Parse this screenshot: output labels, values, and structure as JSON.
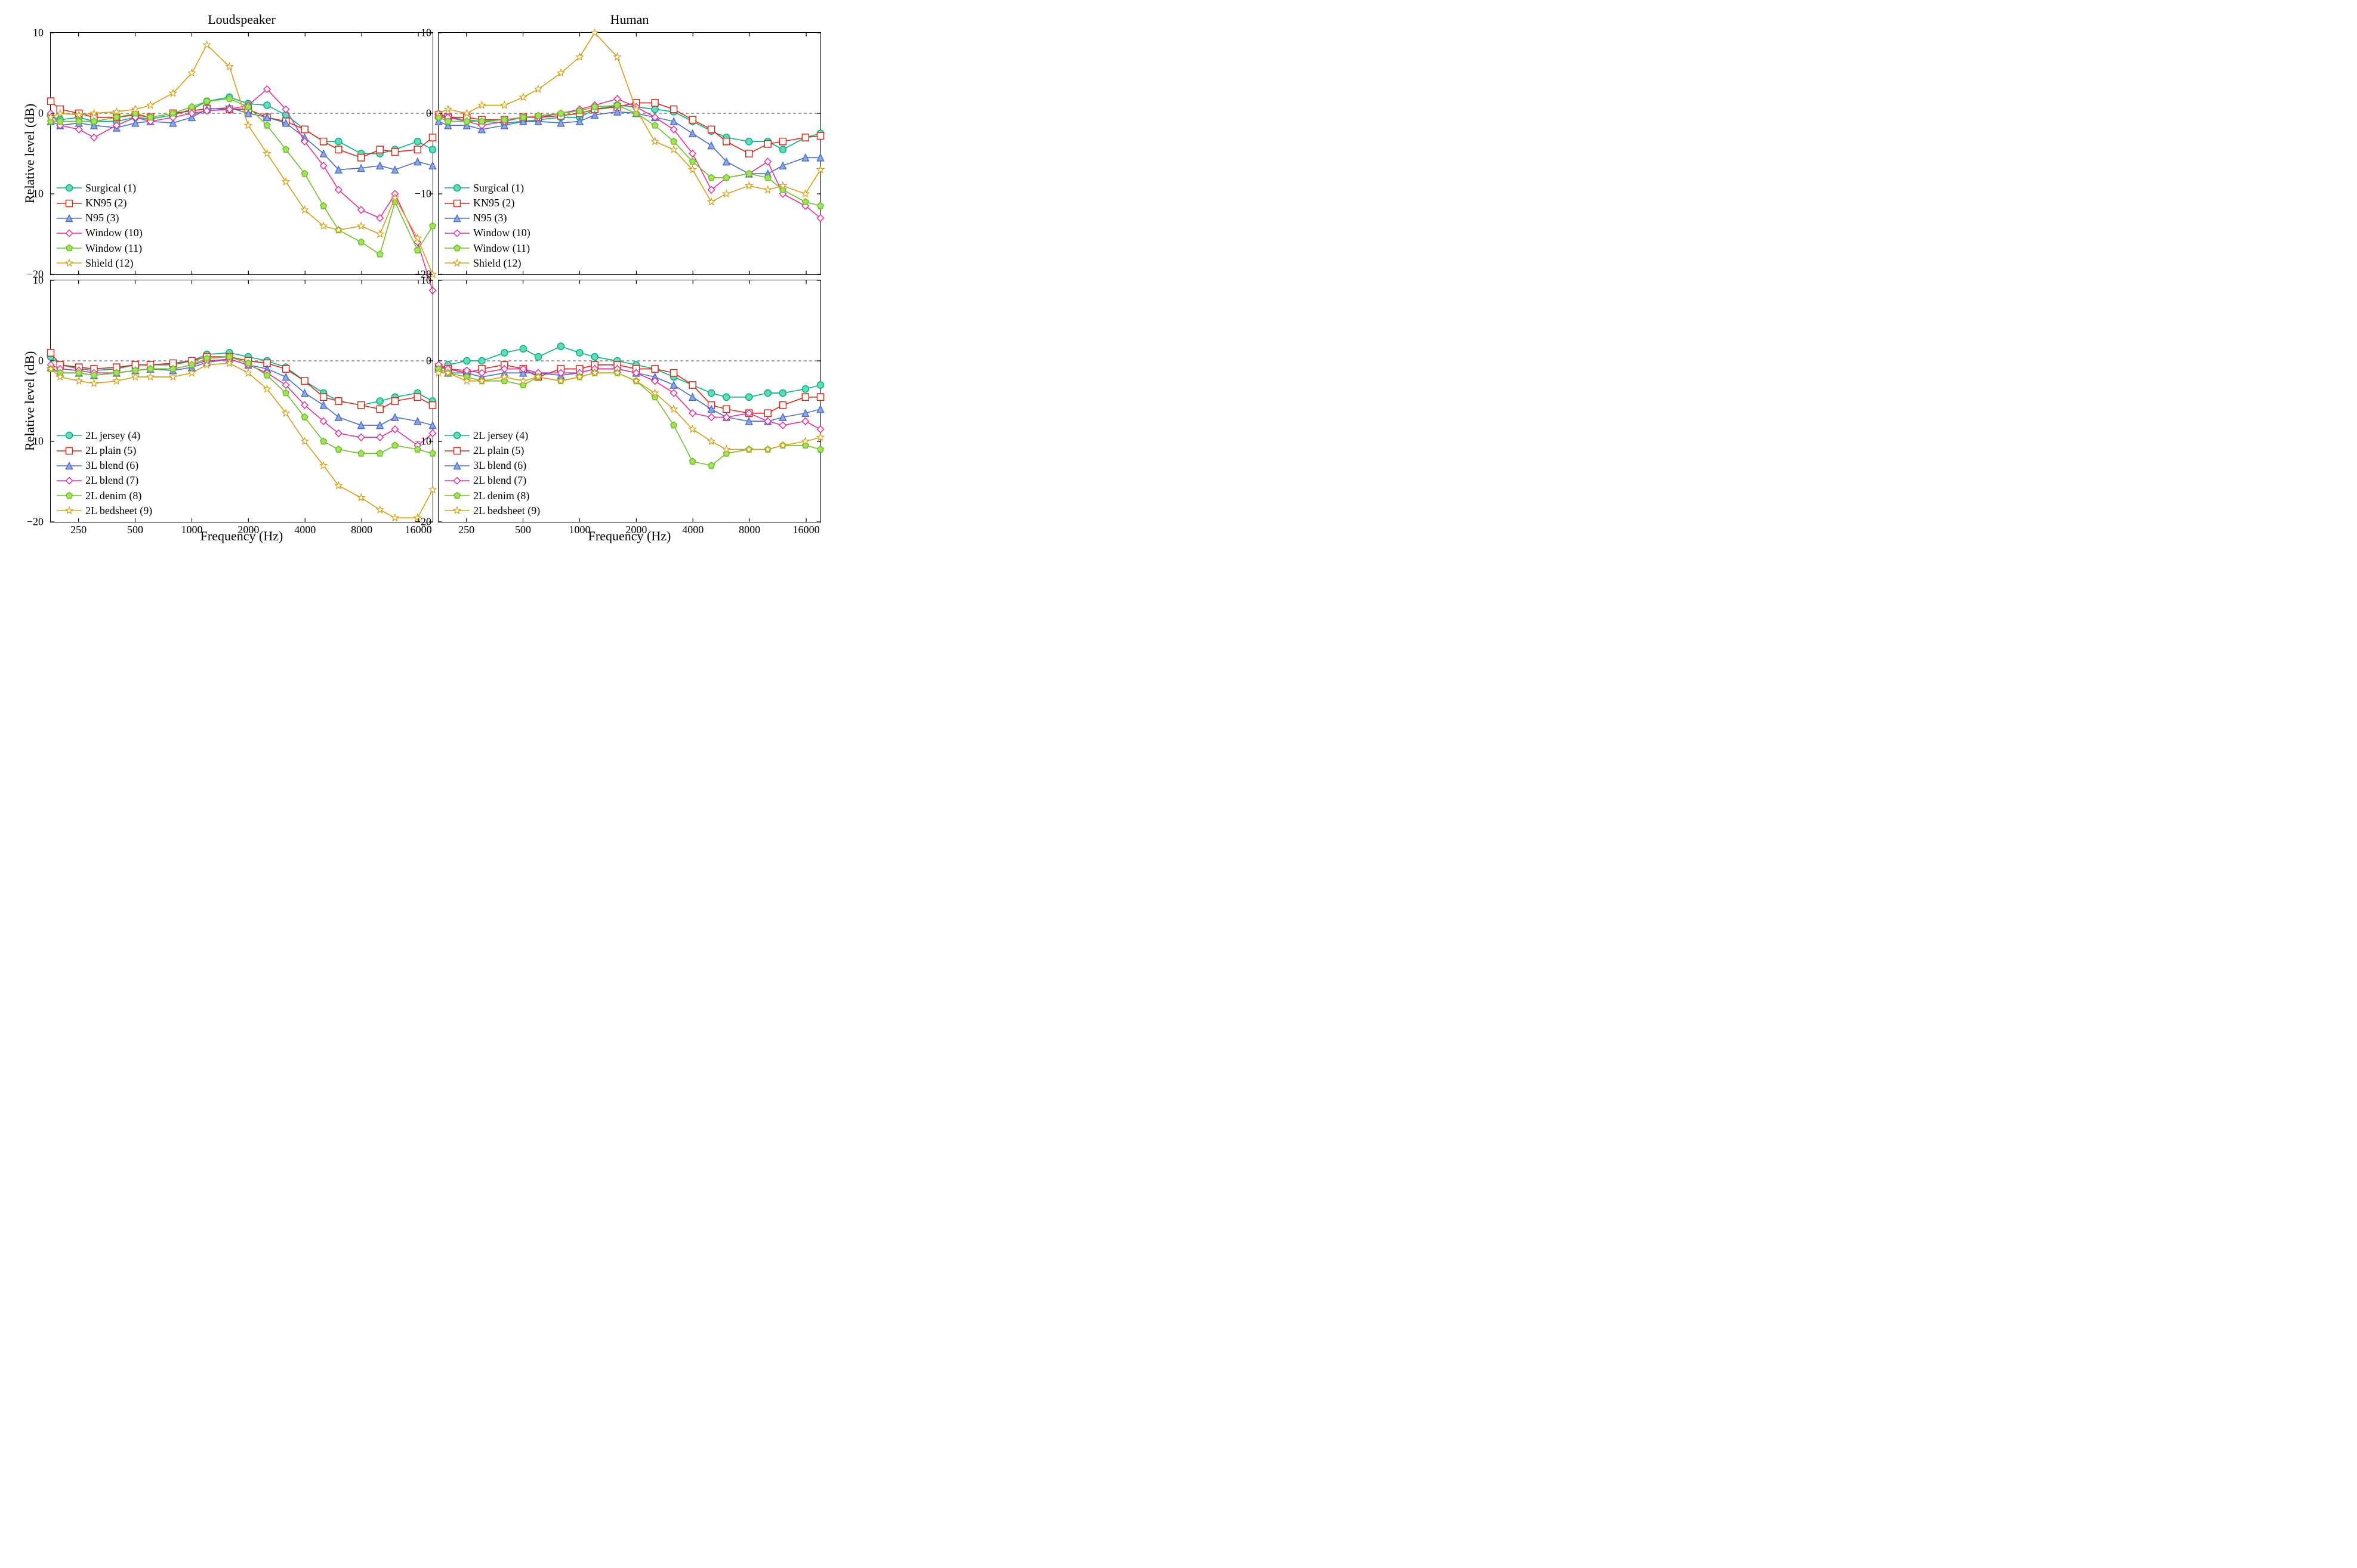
{
  "titles": {
    "left": "Loudspeaker",
    "right": "Human"
  },
  "ylabel": "Relative level (dB)",
  "xlabel": "Frequency (Hz)",
  "axis": {
    "xmin_log": 2.25,
    "xmax_log": 4.28,
    "ymin": -20,
    "ymax": 10,
    "xticks": [
      250,
      500,
      1000,
      2000,
      4000,
      8000,
      16000
    ],
    "yticks": [
      -20,
      -10,
      0,
      10
    ],
    "grid_color": "#808080",
    "grid_dash": "5,4",
    "zero_line": true
  },
  "x_log": [
    2.25,
    2.3,
    2.4,
    2.48,
    2.6,
    2.7,
    2.78,
    2.9,
    3.0,
    3.08,
    3.2,
    3.3,
    3.4,
    3.5,
    3.6,
    3.7,
    3.78,
    3.9,
    4.0,
    4.08,
    4.2,
    4.28
  ],
  "sty": {
    "s1": {
      "color": "#00b386",
      "marker": "circle",
      "fill": "#66d9b8"
    },
    "s2": {
      "color": "#d62c1a",
      "marker": "square",
      "fill": "none"
    },
    "s3": {
      "color": "#4a6fd1",
      "marker": "triangle",
      "fill": "#8ea6e6"
    },
    "s4": {
      "color": "#e82e9e",
      "marker": "diamond",
      "fill": "none"
    },
    "s5": {
      "color": "#6cc224",
      "marker": "pentagon",
      "fill": "#a6e060"
    },
    "s6": {
      "color": "#d4a017",
      "marker": "star",
      "fill": "none"
    }
  },
  "panels": [
    {
      "id": "tl",
      "legend": [
        {
          "sty": "s1",
          "label": "Surgical (1)"
        },
        {
          "sty": "s2",
          "label": "KN95 (2)"
        },
        {
          "sty": "s3",
          "label": "N95 (3)"
        },
        {
          "sty": "s4",
          "label": "Window (10)"
        },
        {
          "sty": "s5",
          "label": "Window (11)"
        },
        {
          "sty": "s6",
          "label": "Shield (12)"
        }
      ],
      "series": [
        {
          "sty": "s1",
          "y": [
            -0.3,
            -0.8,
            -0.5,
            -1.0,
            -1.0,
            -0.5,
            -0.7,
            -0.2,
            0.5,
            1.5,
            2.0,
            1.2,
            1.0,
            -0.2,
            -2.0,
            -3.5,
            -3.5,
            -5.0,
            -5.0,
            -4.5,
            -3.5,
            -4.5
          ]
        },
        {
          "sty": "s2",
          "y": [
            1.5,
            0.5,
            0.0,
            -0.5,
            -0.5,
            -0.2,
            -0.5,
            0.0,
            0.3,
            0.6,
            0.5,
            0.5,
            -0.5,
            -1.0,
            -2.0,
            -3.5,
            -4.5,
            -5.5,
            -4.5,
            -4.8,
            -4.5,
            -3.0
          ]
        },
        {
          "sty": "s3",
          "y": [
            -1.0,
            -1.5,
            -1.2,
            -1.5,
            -1.8,
            -1.2,
            -1.0,
            -1.2,
            -0.5,
            0.5,
            0.7,
            0.0,
            -0.5,
            -1.2,
            -3.0,
            -5.0,
            -7.0,
            -6.8,
            -6.5,
            -7.0,
            -6.0,
            -6.5
          ]
        },
        {
          "sty": "s4",
          "y": [
            0.0,
            -1.5,
            -2.0,
            -3.0,
            -1.5,
            -0.5,
            -1.0,
            -0.5,
            0.0,
            0.3,
            0.5,
            1.0,
            3.0,
            0.5,
            -3.5,
            -6.5,
            -9.5,
            -12.0,
            -13.0,
            -10.0,
            -16.0,
            -22.0
          ]
        },
        {
          "sty": "s5",
          "y": [
            -1.0,
            -1.0,
            -1.0,
            -1.0,
            -0.5,
            0.0,
            -0.5,
            0.0,
            0.8,
            1.5,
            1.8,
            0.8,
            -1.5,
            -4.5,
            -7.5,
            -11.5,
            -14.5,
            -16.0,
            -17.5,
            -11.0,
            -17.0,
            -14.0
          ]
        },
        {
          "sty": "s6",
          "y": [
            -0.5,
            0.0,
            -0.2,
            0.0,
            0.2,
            0.5,
            1.0,
            2.5,
            5.0,
            8.5,
            5.8,
            -1.5,
            -5.0,
            -8.5,
            -12.0,
            -14.0,
            -14.5,
            -14.0,
            -15.0,
            -10.5,
            -15.5,
            -20.0
          ]
        }
      ]
    },
    {
      "id": "tr",
      "legend": [
        {
          "sty": "s1",
          "label": "Surgical (1)"
        },
        {
          "sty": "s2",
          "label": "KN95 (2)"
        },
        {
          "sty": "s3",
          "label": "N95 (3)"
        },
        {
          "sty": "s4",
          "label": "Window (10)"
        },
        {
          "sty": "s5",
          "label": "Window (11)"
        },
        {
          "sty": "s6",
          "label": "Shield (12)"
        }
      ],
      "series": [
        {
          "sty": "s1",
          "y": [
            -0.5,
            -0.5,
            -0.8,
            -1.0,
            -1.2,
            -1.0,
            -0.8,
            -0.5,
            -0.5,
            0.5,
            1.0,
            0.8,
            0.5,
            0.2,
            -1.0,
            -2.2,
            -3.0,
            -3.5,
            -3.5,
            -4.5,
            -3.0,
            -2.5
          ]
        },
        {
          "sty": "s2",
          "y": [
            -0.2,
            -0.5,
            -0.5,
            -0.8,
            -0.8,
            -0.5,
            -0.5,
            -0.3,
            0.0,
            0.5,
            0.8,
            1.3,
            1.3,
            0.5,
            -0.8,
            -2.0,
            -3.5,
            -5.0,
            -3.8,
            -3.5,
            -3.0,
            -2.8
          ]
        },
        {
          "sty": "s3",
          "y": [
            -1.0,
            -1.5,
            -1.5,
            -2.0,
            -1.5,
            -1.0,
            -1.0,
            -1.2,
            -1.0,
            -0.2,
            0.2,
            0.0,
            -0.5,
            -1.0,
            -2.5,
            -4.0,
            -6.0,
            -7.5,
            -7.5,
            -6.5,
            -5.5,
            -5.5
          ]
        },
        {
          "sty": "s4",
          "y": [
            0.0,
            -0.5,
            -1.0,
            -1.5,
            -1.0,
            -0.5,
            -0.5,
            0.0,
            0.5,
            1.0,
            1.8,
            0.8,
            -0.5,
            -2.0,
            -5.0,
            -9.5,
            -8.0,
            -7.5,
            -6.0,
            -10.0,
            -11.5,
            -13.0
          ]
        },
        {
          "sty": "s5",
          "y": [
            -0.5,
            -1.0,
            -1.0,
            -1.0,
            -0.8,
            -0.5,
            -0.3,
            0.0,
            0.3,
            0.8,
            1.0,
            0.0,
            -1.5,
            -3.5,
            -6.0,
            -8.0,
            -8.0,
            -7.5,
            -8.0,
            -9.5,
            -11.0,
            -11.5
          ]
        },
        {
          "sty": "s6",
          "y": [
            0.0,
            0.5,
            0.0,
            1.0,
            1.0,
            2.0,
            3.0,
            5.0,
            7.0,
            10.0,
            7.0,
            0.5,
            -3.5,
            -4.5,
            -7.0,
            -11.0,
            -10.0,
            -9.0,
            -9.5,
            -9.0,
            -10.0,
            -7.0
          ]
        }
      ]
    },
    {
      "id": "bl",
      "legend": [
        {
          "sty": "s1",
          "label": "2L jersey (4)"
        },
        {
          "sty": "s2",
          "label": "2L plain (5)"
        },
        {
          "sty": "s3",
          "label": "3L blend (6)"
        },
        {
          "sty": "s4",
          "label": "2L blend (7)"
        },
        {
          "sty": "s5",
          "label": "2L denim (8)"
        },
        {
          "sty": "s6",
          "label": "2L bedsheet (9)"
        }
      ],
      "series": [
        {
          "sty": "s1",
          "y": [
            0.5,
            -0.5,
            -1.0,
            -1.2,
            -1.0,
            -0.5,
            -0.5,
            -0.5,
            0.0,
            0.8,
            1.0,
            0.5,
            0.0,
            -0.8,
            -2.5,
            -4.0,
            -5.0,
            -5.5,
            -5.0,
            -4.5,
            -4.0,
            -5.0
          ]
        },
        {
          "sty": "s2",
          "y": [
            1.0,
            -0.5,
            -0.8,
            -1.0,
            -0.8,
            -0.5,
            -0.5,
            -0.3,
            0.0,
            0.5,
            0.5,
            0.0,
            -0.3,
            -1.0,
            -2.5,
            -4.5,
            -5.0,
            -5.5,
            -6.0,
            -5.0,
            -4.5,
            -5.5
          ]
        },
        {
          "sty": "s3",
          "y": [
            -0.8,
            -1.5,
            -1.5,
            -1.8,
            -1.5,
            -1.2,
            -1.0,
            -1.2,
            -0.8,
            -0.2,
            0.2,
            -0.5,
            -1.0,
            -2.0,
            -4.0,
            -5.5,
            -7.0,
            -8.0,
            -8.0,
            -7.0,
            -7.5,
            -8.0
          ]
        },
        {
          "sty": "s4",
          "y": [
            -0.5,
            -1.0,
            -1.2,
            -1.5,
            -1.5,
            -1.2,
            -1.0,
            -1.0,
            -0.5,
            0.0,
            0.2,
            -0.5,
            -1.5,
            -3.0,
            -5.5,
            -7.5,
            -9.0,
            -9.5,
            -9.5,
            -8.5,
            -10.5,
            -9.0
          ]
        },
        {
          "sty": "s5",
          "y": [
            -1.0,
            -1.5,
            -1.5,
            -1.8,
            -1.5,
            -1.2,
            -1.0,
            -1.0,
            -0.5,
            0.3,
            0.5,
            -0.3,
            -1.8,
            -4.0,
            -7.0,
            -10.0,
            -11.0,
            -11.5,
            -11.5,
            -10.5,
            -11.0,
            -11.5
          ]
        },
        {
          "sty": "s6",
          "y": [
            -1.0,
            -2.0,
            -2.5,
            -2.8,
            -2.5,
            -2.0,
            -2.0,
            -2.0,
            -1.5,
            -0.5,
            -0.3,
            -1.5,
            -3.5,
            -6.5,
            -10.0,
            -13.0,
            -15.5,
            -17.0,
            -18.5,
            -19.5,
            -19.5,
            -16.0
          ]
        }
      ]
    },
    {
      "id": "br",
      "legend": [
        {
          "sty": "s1",
          "label": "2L jersey (4)"
        },
        {
          "sty": "s2",
          "label": "2L plain (5)"
        },
        {
          "sty": "s3",
          "label": "3L blend (6)"
        },
        {
          "sty": "s4",
          "label": "2L blend (7)"
        },
        {
          "sty": "s5",
          "label": "2L denim (8)"
        },
        {
          "sty": "s6",
          "label": "2L bedsheet (9)"
        }
      ],
      "series": [
        {
          "sty": "s1",
          "y": [
            -1.0,
            -0.5,
            0.0,
            0.0,
            1.0,
            1.5,
            0.5,
            1.8,
            1.0,
            0.5,
            0.0,
            -0.5,
            -1.0,
            -2.0,
            -3.0,
            -4.0,
            -4.5,
            -4.5,
            -4.0,
            -4.0,
            -3.5,
            -3.0
          ]
        },
        {
          "sty": "s2",
          "y": [
            -0.8,
            -1.0,
            -1.5,
            -1.0,
            -0.5,
            -1.0,
            -2.0,
            -1.0,
            -1.0,
            -0.5,
            -0.5,
            -1.0,
            -1.0,
            -1.5,
            -3.0,
            -5.5,
            -6.0,
            -6.5,
            -6.5,
            -5.5,
            -4.5,
            -4.5
          ]
        },
        {
          "sty": "s3",
          "y": [
            -1.0,
            -1.5,
            -1.5,
            -2.0,
            -1.5,
            -1.5,
            -1.5,
            -1.8,
            -1.5,
            -1.0,
            -1.0,
            -1.5,
            -2.0,
            -3.0,
            -4.5,
            -6.0,
            -7.0,
            -7.5,
            -7.5,
            -7.0,
            -6.5,
            -6.0
          ]
        },
        {
          "sty": "s4",
          "y": [
            -0.5,
            -1.0,
            -1.2,
            -1.5,
            -1.0,
            -1.0,
            -1.5,
            -1.5,
            -1.5,
            -1.0,
            -1.0,
            -1.5,
            -2.5,
            -4.0,
            -6.5,
            -7.0,
            -7.0,
            -6.5,
            -7.5,
            -8.0,
            -7.5,
            -8.5
          ]
        },
        {
          "sty": "s5",
          "y": [
            -1.0,
            -1.5,
            -2.0,
            -2.5,
            -2.5,
            -3.0,
            -2.0,
            -2.5,
            -2.0,
            -1.5,
            -1.5,
            -2.5,
            -4.5,
            -8.0,
            -12.5,
            -13.0,
            -11.5,
            -11.0,
            -11.0,
            -10.5,
            -10.5,
            -11.0
          ]
        },
        {
          "sty": "s6",
          "y": [
            -1.5,
            -1.5,
            -2.5,
            -2.5,
            -2.0,
            -2.5,
            -2.0,
            -2.5,
            -2.0,
            -1.5,
            -1.5,
            -2.5,
            -4.0,
            -6.0,
            -8.5,
            -10.0,
            -11.0,
            -11.0,
            -11.0,
            -10.5,
            -10.0,
            -9.5
          ]
        }
      ]
    }
  ]
}
